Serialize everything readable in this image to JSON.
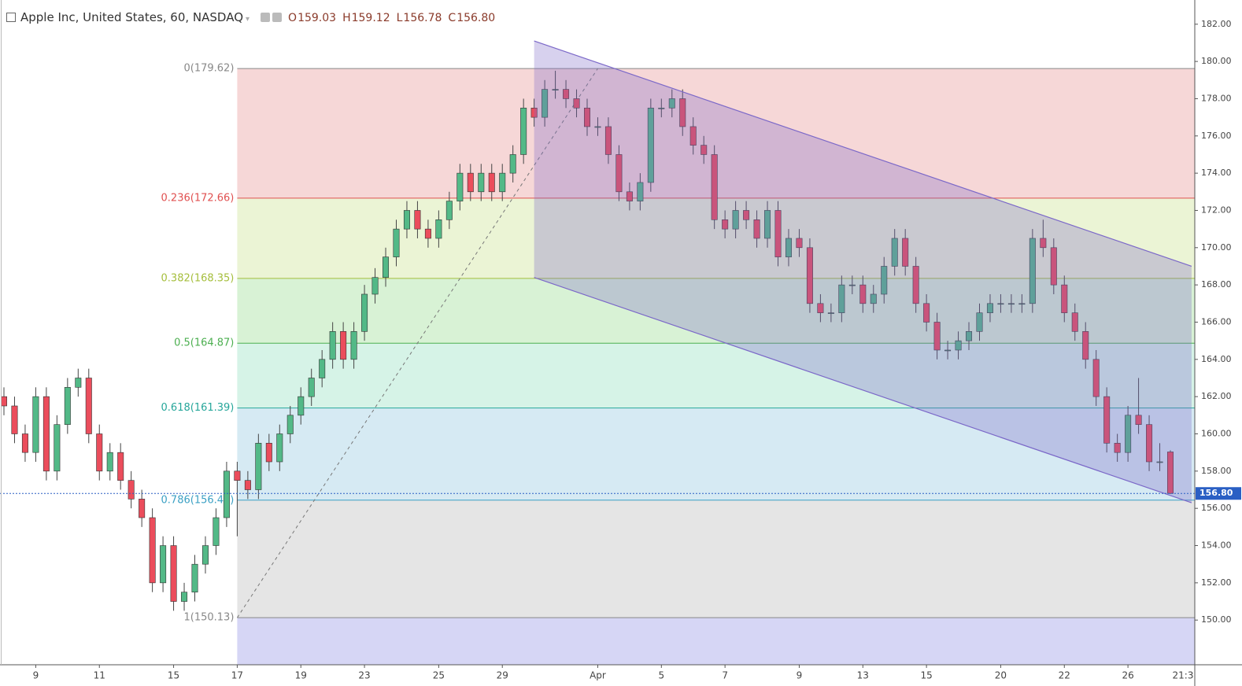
{
  "chart_data": {
    "type": "candlestick",
    "title": "Apple Inc, United States, 60, NASDAQ",
    "ohlc": {
      "names": [
        "O",
        "H",
        "L",
        "C"
      ],
      "values": [
        159.03,
        159.12,
        156.78,
        156.8
      ],
      "value_labels": [
        "159.03",
        "159.12",
        "156.78",
        "156.80"
      ]
    },
    "categories": [
      null,
      null,
      null,
      "9",
      null,
      null,
      null,
      null,
      null,
      "11",
      null,
      null,
      null,
      null,
      null,
      null,
      "15",
      null,
      null,
      null,
      null,
      null,
      "17",
      null,
      null,
      null,
      null,
      null,
      "19",
      null,
      null,
      null,
      null,
      null,
      "23",
      null,
      null,
      null,
      null,
      null,
      null,
      "25",
      null,
      null,
      null,
      null,
      null,
      "29",
      null,
      null,
      null,
      null,
      null,
      null,
      null,
      null,
      "Apr",
      null,
      null,
      null,
      null,
      null,
      "5",
      null,
      null,
      null,
      null,
      null,
      "7",
      null,
      null,
      null,
      null,
      null,
      null,
      "9",
      null,
      null,
      null,
      null,
      null,
      "13",
      null,
      null,
      null,
      null,
      null,
      "15",
      null,
      null,
      null,
      null,
      null,
      null,
      "20",
      null,
      null,
      null,
      null,
      null,
      "22",
      null,
      null,
      null,
      null,
      null,
      "26",
      null,
      null,
      null,
      null
    ],
    "time_label": "21:3",
    "candles": [
      [
        162,
        162.5,
        161,
        161.5
      ],
      [
        161.5,
        162,
        159.5,
        160
      ],
      [
        160,
        160.5,
        158.5,
        159
      ],
      [
        159,
        162.5,
        158.5,
        162
      ],
      [
        162,
        162.5,
        157.5,
        158
      ],
      [
        158,
        161,
        157.5,
        160.5
      ],
      [
        160.5,
        163,
        160,
        162.5
      ],
      [
        162.5,
        163.5,
        162,
        163
      ],
      [
        163,
        163.5,
        159.5,
        160
      ],
      [
        160,
        160.5,
        157.5,
        158
      ],
      [
        158,
        159.5,
        157.5,
        159
      ],
      [
        159,
        159.5,
        157,
        157.5
      ],
      [
        157.5,
        158,
        156,
        156.5
      ],
      [
        156.5,
        157,
        155,
        155.5
      ],
      [
        155.5,
        156,
        151.5,
        152
      ],
      [
        152,
        154.5,
        151.5,
        154
      ],
      [
        154,
        154.5,
        150.5,
        151
      ],
      [
        151,
        152,
        150.5,
        151.5
      ],
      [
        151.5,
        153.5,
        151,
        153
      ],
      [
        153,
        154.5,
        152.5,
        154
      ],
      [
        154,
        156,
        153.5,
        155.5
      ],
      [
        155.5,
        158.5,
        155,
        158
      ],
      [
        158,
        158.5,
        154.5,
        157.5
      ],
      [
        157.5,
        158,
        156.5,
        157
      ],
      [
        157,
        160,
        156.5,
        159.5
      ],
      [
        159.5,
        160,
        158,
        158.5
      ],
      [
        158.5,
        160.5,
        158,
        160
      ],
      [
        160,
        161.5,
        159.5,
        161
      ],
      [
        161,
        162.5,
        160.5,
        162
      ],
      [
        162,
        163.5,
        161.5,
        163
      ],
      [
        163,
        164.5,
        162.5,
        164
      ],
      [
        164,
        166,
        163.5,
        165.5
      ],
      [
        165.5,
        166,
        163.5,
        164
      ],
      [
        164,
        166,
        163.5,
        165.5
      ],
      [
        165.5,
        168,
        165,
        167.5
      ],
      [
        167.5,
        168.9,
        167,
        168.4
      ],
      [
        168.4,
        170,
        167.9,
        169.5
      ],
      [
        169.5,
        171.5,
        169,
        171
      ],
      [
        171,
        172.5,
        170.5,
        172
      ],
      [
        172,
        172.5,
        170.5,
        171
      ],
      [
        171,
        171.5,
        170,
        170.5
      ],
      [
        170.5,
        172,
        170,
        171.5
      ],
      [
        171.5,
        173,
        171,
        172.5
      ],
      [
        172.5,
        174.5,
        172,
        174
      ],
      [
        174,
        174.5,
        172.5,
        173
      ],
      [
        173,
        174.5,
        172.5,
        174
      ],
      [
        174,
        174.5,
        172.5,
        173
      ],
      [
        173,
        174.5,
        172.5,
        174
      ],
      [
        174,
        175.5,
        173.5,
        175
      ],
      [
        175,
        178,
        174.5,
        177.5
      ],
      [
        177.5,
        178,
        176.5,
        177
      ],
      [
        177,
        179,
        176.5,
        178.5
      ],
      [
        178.5,
        179.5,
        178,
        178.5
      ],
      [
        178.5,
        179,
        177.5,
        178
      ],
      [
        178,
        178.5,
        177,
        177.5
      ],
      [
        177.5,
        178,
        176,
        176.5
      ],
      [
        176.5,
        177,
        176,
        176.5
      ],
      [
        176.5,
        177,
        174.5,
        175
      ],
      [
        175,
        175.5,
        172.5,
        173
      ],
      [
        173,
        173.5,
        172,
        172.5
      ],
      [
        172.5,
        174,
        172,
        173.5
      ],
      [
        173.5,
        178,
        173,
        177.5
      ],
      [
        177.5,
        178,
        177,
        177.5
      ],
      [
        177.5,
        178.5,
        177,
        178
      ],
      [
        178,
        178.5,
        176,
        176.5
      ],
      [
        176.5,
        177,
        175,
        175.5
      ],
      [
        175.5,
        176,
        174.5,
        175
      ],
      [
        175,
        175.5,
        171,
        171.5
      ],
      [
        171.5,
        172,
        170.5,
        171
      ],
      [
        171,
        172.5,
        170.5,
        172
      ],
      [
        172,
        172.5,
        171,
        171.5
      ],
      [
        171.5,
        172,
        170,
        170.5
      ],
      [
        170.5,
        172.5,
        170,
        172
      ],
      [
        172,
        172.5,
        169,
        169.5
      ],
      [
        169.5,
        171,
        169,
        170.5
      ],
      [
        170.5,
        171,
        169.5,
        170
      ],
      [
        170,
        170.5,
        166.5,
        167
      ],
      [
        167,
        167.5,
        166,
        166.5
      ],
      [
        166.5,
        167,
        166,
        166.5
      ],
      [
        166.5,
        168.5,
        166,
        168
      ],
      [
        168,
        168.5,
        167.5,
        168
      ],
      [
        168,
        168.5,
        166.5,
        167
      ],
      [
        167,
        168,
        166.5,
        167.5
      ],
      [
        167.5,
        169.5,
        167,
        169
      ],
      [
        169,
        171,
        168.5,
        170.5
      ],
      [
        170.5,
        171,
        168.5,
        169
      ],
      [
        169,
        169.5,
        166.5,
        167
      ],
      [
        167,
        167.5,
        165.5,
        166
      ],
      [
        166,
        166.5,
        164,
        164.5
      ],
      [
        164.5,
        165,
        164,
        164.5
      ],
      [
        164.5,
        165.5,
        164,
        165
      ],
      [
        165,
        166,
        164.5,
        165.5
      ],
      [
        165.5,
        167,
        165,
        166.5
      ],
      [
        166.5,
        167.5,
        166,
        167
      ],
      [
        167,
        167.5,
        166.5,
        167
      ],
      [
        167,
        167.5,
        166.5,
        167
      ],
      [
        167,
        167.5,
        166.5,
        167
      ],
      [
        167,
        171,
        166.5,
        170.5
      ],
      [
        170.5,
        171.5,
        169.5,
        170
      ],
      [
        170,
        170.5,
        167.5,
        168
      ],
      [
        168,
        168.5,
        166,
        166.5
      ],
      [
        166.5,
        167,
        165,
        165.5
      ],
      [
        165.5,
        166,
        163.5,
        164
      ],
      [
        164,
        164.5,
        161.5,
        162
      ],
      [
        162,
        162.5,
        159,
        159.5
      ],
      [
        159.5,
        160,
        158.5,
        159
      ],
      [
        159,
        161.5,
        158.5,
        161
      ],
      [
        161,
        163,
        160,
        160.5
      ],
      [
        160.5,
        161,
        158,
        158.5
      ],
      [
        158.5,
        159.5,
        158,
        158.5
      ],
      [
        159.03,
        159.12,
        156.78,
        156.8
      ]
    ],
    "up_color": "#53b987",
    "down_color": "#eb4d5c",
    "wick_color": "#444444",
    "ylim": [
      147.6,
      183.3
    ],
    "yticks": [
      {
        "value": 150,
        "label": "150.00"
      },
      {
        "value": 152,
        "label": "152.00"
      },
      {
        "value": 154,
        "label": "154.00"
      },
      {
        "value": 156,
        "label": "156.00"
      },
      {
        "value": 158,
        "label": "158.00"
      },
      {
        "value": 160,
        "label": "160.00"
      },
      {
        "value": 162,
        "label": "162.00"
      },
      {
        "value": 164,
        "label": "164.00"
      },
      {
        "value": 166,
        "label": "166.00"
      },
      {
        "value": 168,
        "label": "168.00"
      },
      {
        "value": 170,
        "label": "170.00"
      },
      {
        "value": 172,
        "label": "172.00"
      },
      {
        "value": 174,
        "label": "174.00"
      },
      {
        "value": 176,
        "label": "176.00"
      },
      {
        "value": 178,
        "label": "178.00"
      },
      {
        "value": 180,
        "label": "180.00"
      },
      {
        "value": 182,
        "label": "182.00"
      }
    ],
    "last_price": {
      "value": 156.8,
      "label": "156.80"
    },
    "fib_start": 22,
    "fib_levels": [
      {
        "ratio": 0,
        "price": 179.62,
        "label": "0(179.62)",
        "color": "#888888",
        "fill": "#f5d3d3"
      },
      {
        "ratio": 0.236,
        "price": 172.66,
        "label": "0.236(172.66)",
        "color": "#e05050",
        "fill": "#e9f3d0"
      },
      {
        "ratio": 0.382,
        "price": 168.35,
        "label": "0.382(168.35)",
        "color": "#a5be3c",
        "fill": "#d4f1d0"
      },
      {
        "ratio": 0.5,
        "price": 164.87,
        "label": "0.5(164.87)",
        "color": "#4caf50",
        "fill": "#d2f2e4"
      },
      {
        "ratio": 0.618,
        "price": 161.39,
        "label": "0.618(161.39)",
        "color": "#26a69a",
        "fill": "#d2e8f2"
      },
      {
        "ratio": 0.786,
        "price": 156.44,
        "label": "0.786(156.44)",
        "color": "#3ba0c4",
        "fill": "#e2e2e2"
      },
      {
        "ratio": 1,
        "price": 150.13,
        "label": "1(150.13)",
        "color": "#888888",
        "fill": "#d2d2f4"
      }
    ],
    "trend_line": {
      "x": [
        22,
        56
      ],
      "y": [
        150.13,
        179.62
      ]
    },
    "channel": {
      "x": [
        50,
        112
      ],
      "upper": [
        181.1,
        169.0
      ],
      "lower": [
        168.4,
        156.3
      ],
      "color": "#7b68c8"
    }
  }
}
